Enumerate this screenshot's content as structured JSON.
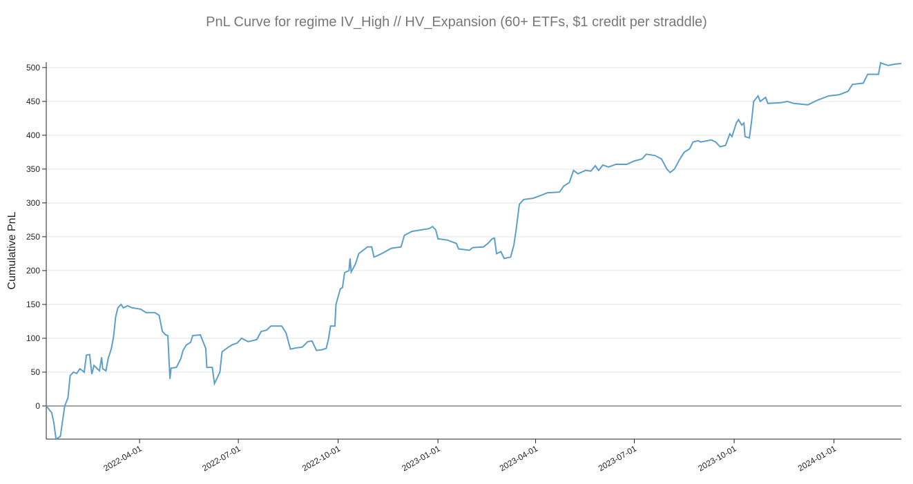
{
  "chart_data": {
    "type": "line",
    "title": "PnL Curve for regime IV_High // HV_Expansion (60+ ETFs, $1 credit per straddle)",
    "y_label": "Cumulative PnL",
    "color": "#5b9fc9",
    "grid": true,
    "xlim": [
      "2022-01-05",
      "2024-03-03"
    ],
    "xticks": [
      "2022-04-01",
      "2022-07-01",
      "2022-10-01",
      "2023-01-01",
      "2023-04-01",
      "2023-07-01",
      "2023-10-01",
      "2024-01-01"
    ],
    "ylim": [
      -49,
      508
    ],
    "yticks": [
      0,
      50,
      100,
      150,
      200,
      250,
      300,
      350,
      400,
      450,
      500
    ],
    "x": [
      "2022-01-05",
      "2022-01-10",
      "2022-01-12",
      "2022-01-14",
      "2022-01-18",
      "2022-01-22",
      "2022-01-25",
      "2022-01-27",
      "2022-01-30",
      "2022-02-02",
      "2022-02-05",
      "2022-02-09",
      "2022-02-11",
      "2022-02-14",
      "2022-02-16",
      "2022-02-18",
      "2022-02-21",
      "2022-02-23",
      "2022-02-25",
      "2022-02-26",
      "2022-03-01",
      "2022-03-03",
      "2022-03-06",
      "2022-03-08",
      "2022-03-10",
      "2022-03-12",
      "2022-03-15",
      "2022-03-17",
      "2022-03-21",
      "2022-03-25",
      "2022-04-02",
      "2022-04-07",
      "2022-04-15",
      "2022-04-19",
      "2022-04-22",
      "2022-04-25",
      "2022-04-27",
      "2022-04-29",
      "2022-04-30",
      "2022-05-05",
      "2022-05-09",
      "2022-05-11",
      "2022-05-14",
      "2022-05-18",
      "2022-05-20",
      "2022-05-27",
      "2022-06-01",
      "2022-06-02",
      "2022-06-07",
      "2022-06-09",
      "2022-06-14",
      "2022-06-16",
      "2022-06-21",
      "2022-06-25",
      "2022-06-30",
      "2022-07-04",
      "2022-07-10",
      "2022-07-18",
      "2022-07-22",
      "2022-07-27",
      "2022-07-31",
      "2022-08-10",
      "2022-08-14",
      "2022-08-18",
      "2022-08-24",
      "2022-08-29",
      "2022-09-03",
      "2022-09-07",
      "2022-09-11",
      "2022-09-16",
      "2022-09-20",
      "2022-09-22",
      "2022-09-24",
      "2022-09-28",
      "2022-09-29",
      "2022-10-03",
      "2022-10-05",
      "2022-10-07",
      "2022-10-11",
      "2022-10-12",
      "2022-10-13",
      "2022-10-17",
      "2022-10-20",
      "2022-10-28",
      "2022-11-01",
      "2022-11-03",
      "2022-11-06",
      "2022-11-10",
      "2022-11-19",
      "2022-11-28",
      "2022-12-01",
      "2022-12-08",
      "2022-12-24",
      "2022-12-27",
      "2022-12-30",
      "2023-01-01",
      "2023-01-10",
      "2023-01-18",
      "2023-01-20",
      "2023-01-30",
      "2023-02-02",
      "2023-02-12",
      "2023-02-16",
      "2023-02-20",
      "2023-02-22",
      "2023-02-24",
      "2023-02-28",
      "2023-03-03",
      "2023-03-09",
      "2023-03-12",
      "2023-03-14",
      "2023-03-17",
      "2023-03-21",
      "2023-03-30",
      "2023-04-04",
      "2023-04-12",
      "2023-04-23",
      "2023-04-27",
      "2023-05-02",
      "2023-05-06",
      "2023-05-10",
      "2023-05-17",
      "2023-05-22",
      "2023-05-26",
      "2023-05-29",
      "2023-06-02",
      "2023-06-07",
      "2023-06-14",
      "2023-06-24",
      "2023-07-01",
      "2023-07-08",
      "2023-07-12",
      "2023-07-20",
      "2023-07-26",
      "2023-07-31",
      "2023-08-03",
      "2023-08-07",
      "2023-08-12",
      "2023-08-16",
      "2023-08-21",
      "2023-08-24",
      "2023-08-29",
      "2023-08-31",
      "2023-09-10",
      "2023-09-14",
      "2023-09-18",
      "2023-09-23",
      "2023-09-27",
      "2023-09-29",
      "2023-10-03",
      "2023-10-05",
      "2023-10-08",
      "2023-10-10",
      "2023-10-11",
      "2023-10-15",
      "2023-10-17",
      "2023-10-19",
      "2023-10-23",
      "2023-10-25",
      "2023-10-30",
      "2023-11-01",
      "2023-11-13",
      "2023-11-19",
      "2023-11-25",
      "2023-12-08",
      "2023-12-17",
      "2023-12-27",
      "2024-01-06",
      "2024-01-14",
      "2024-01-18",
      "2024-01-28",
      "2024-02-01",
      "2024-02-11",
      "2024-02-13",
      "2024-02-20",
      "2024-02-26",
      "2024-03-03"
    ],
    "values": [
      0,
      -10,
      -25,
      -49,
      -45,
      0,
      12,
      45,
      50,
      48,
      55,
      50,
      75,
      76,
      47,
      60,
      55,
      52,
      72,
      55,
      52,
      70,
      85,
      102,
      132,
      145,
      150,
      145,
      148,
      145,
      143,
      138,
      138,
      134,
      110,
      105,
      104,
      40,
      56,
      57,
      70,
      82,
      90,
      94,
      104,
      105,
      85,
      57,
      57,
      33,
      50,
      80,
      86,
      90,
      93,
      100,
      95,
      98,
      110,
      112,
      118,
      118,
      108,
      84,
      86,
      87,
      95,
      96,
      82,
      83,
      85,
      98,
      118,
      118,
      150,
      173,
      175,
      197,
      200,
      218,
      198,
      210,
      225,
      235,
      235,
      220,
      222,
      225,
      233,
      235,
      252,
      258,
      262,
      265,
      260,
      247,
      245,
      240,
      232,
      230,
      234,
      235,
      240,
      247,
      248,
      225,
      228,
      218,
      220,
      238,
      260,
      298,
      305,
      307,
      310,
      315,
      316,
      325,
      330,
      348,
      343,
      348,
      347,
      355,
      348,
      356,
      353,
      357,
      357,
      362,
      365,
      372,
      370,
      365,
      350,
      345,
      350,
      365,
      375,
      380,
      390,
      392,
      390,
      393,
      390,
      383,
      385,
      402,
      398,
      418,
      423,
      415,
      418,
      398,
      396,
      420,
      450,
      458,
      450,
      456,
      447,
      448,
      450,
      447,
      445,
      452,
      458,
      460,
      465,
      475,
      477,
      490,
      490,
      507,
      503,
      505,
      506
    ]
  }
}
